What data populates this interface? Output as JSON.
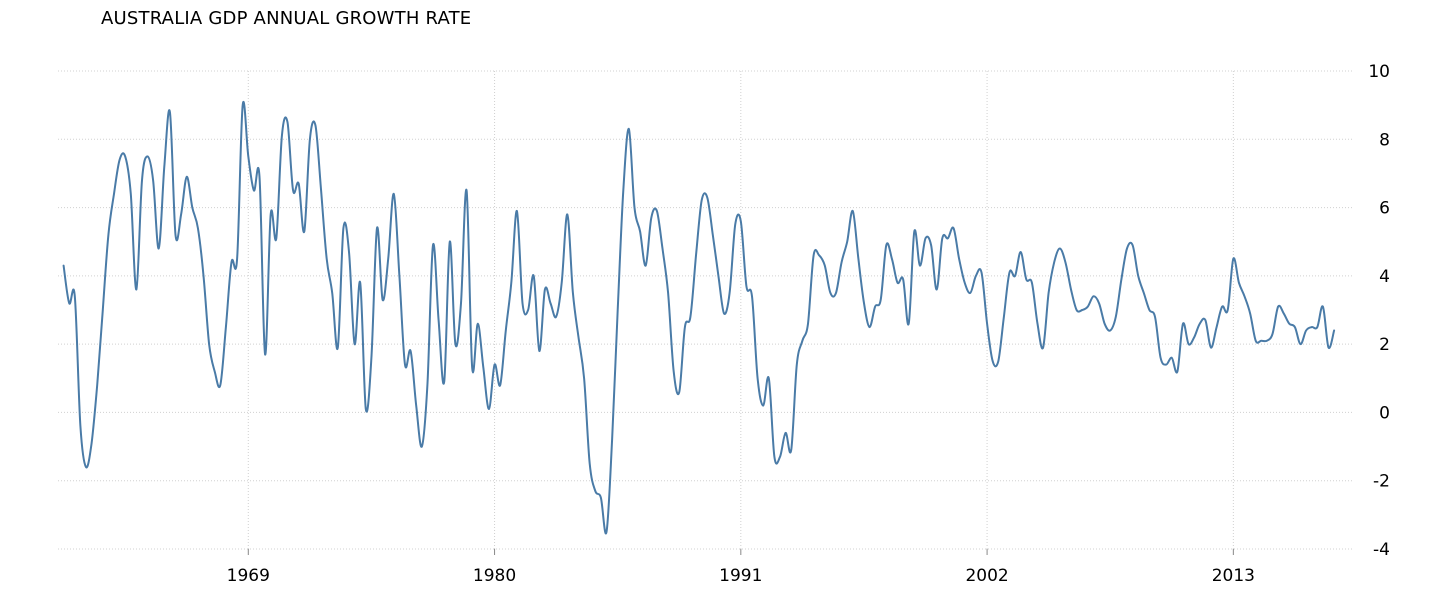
{
  "chart_data": {
    "type": "line",
    "title": "AUSTRALIA GDP ANNUAL GROWTH RATE",
    "xlabel": "",
    "ylabel": "",
    "ylim": [
      -4,
      10
    ],
    "xlim": [
      1960.5,
      2018.3
    ],
    "x_ticks": [
      1969,
      1980,
      1991,
      2002,
      2013
    ],
    "x_tick_labels": [
      "1969",
      "1980",
      "1991",
      "2002",
      "2013"
    ],
    "y_ticks": [
      10,
      8,
      6,
      4,
      2,
      0,
      -2,
      -4
    ],
    "y_tick_labels": [
      "10",
      "8",
      "6",
      "4",
      "2",
      "0",
      "-2",
      "-4"
    ],
    "grid": true,
    "colors": {
      "line": "#4a7ba7",
      "grid": "#d0d0d0"
    },
    "series": [
      {
        "name": "GDP Annual Growth Rate",
        "points": [
          [
            1960.75,
            4.3
          ],
          [
            1961.0,
            3.2
          ],
          [
            1961.25,
            3.4
          ],
          [
            1961.5,
            -0.4
          ],
          [
            1961.75,
            -1.6
          ],
          [
            1962.0,
            -0.9
          ],
          [
            1962.25,
            0.8
          ],
          [
            1962.5,
            3.0
          ],
          [
            1962.75,
            5.2
          ],
          [
            1963.0,
            6.4
          ],
          [
            1963.25,
            7.4
          ],
          [
            1963.5,
            7.5
          ],
          [
            1963.75,
            6.4
          ],
          [
            1964.0,
            3.6
          ],
          [
            1964.25,
            6.8
          ],
          [
            1964.5,
            7.5
          ],
          [
            1964.75,
            6.8
          ],
          [
            1965.0,
            4.8
          ],
          [
            1965.25,
            7.2
          ],
          [
            1965.5,
            8.8
          ],
          [
            1965.75,
            5.2
          ],
          [
            1966.0,
            5.8
          ],
          [
            1966.25,
            6.9
          ],
          [
            1966.5,
            6.0
          ],
          [
            1966.75,
            5.4
          ],
          [
            1967.0,
            4.0
          ],
          [
            1967.25,
            2.0
          ],
          [
            1967.5,
            1.2
          ],
          [
            1967.75,
            0.8
          ],
          [
            1968.0,
            2.5
          ],
          [
            1968.25,
            4.4
          ],
          [
            1968.5,
            4.5
          ],
          [
            1968.75,
            9.0
          ],
          [
            1969.0,
            7.5
          ],
          [
            1969.25,
            6.5
          ],
          [
            1969.5,
            6.9
          ],
          [
            1969.75,
            1.7
          ],
          [
            1970.0,
            5.8
          ],
          [
            1970.25,
            5.1
          ],
          [
            1970.5,
            8.1
          ],
          [
            1970.75,
            8.5
          ],
          [
            1971.0,
            6.5
          ],
          [
            1971.25,
            6.7
          ],
          [
            1971.5,
            5.3
          ],
          [
            1971.75,
            8.0
          ],
          [
            1972.0,
            8.4
          ],
          [
            1972.25,
            6.5
          ],
          [
            1972.5,
            4.5
          ],
          [
            1972.75,
            3.5
          ],
          [
            1973.0,
            1.9
          ],
          [
            1973.25,
            5.4
          ],
          [
            1973.5,
            4.7
          ],
          [
            1973.75,
            2.0
          ],
          [
            1974.0,
            3.8
          ],
          [
            1974.25,
            0.1
          ],
          [
            1974.5,
            1.6
          ],
          [
            1974.75,
            5.4
          ],
          [
            1975.0,
            3.3
          ],
          [
            1975.25,
            4.5
          ],
          [
            1975.5,
            6.4
          ],
          [
            1975.75,
            4.0
          ],
          [
            1976.0,
            1.4
          ],
          [
            1976.25,
            1.8
          ],
          [
            1976.5,
            0.2
          ],
          [
            1976.75,
            -1.0
          ],
          [
            1977.0,
            0.8
          ],
          [
            1977.25,
            4.9
          ],
          [
            1977.5,
            2.7
          ],
          [
            1977.75,
            0.9
          ],
          [
            1978.0,
            5.0
          ],
          [
            1978.25,
            2.0
          ],
          [
            1978.5,
            3.2
          ],
          [
            1978.75,
            6.5
          ],
          [
            1979.0,
            1.3
          ],
          [
            1979.25,
            2.6
          ],
          [
            1979.5,
            1.3
          ],
          [
            1979.75,
            0.1
          ],
          [
            1980.0,
            1.4
          ],
          [
            1980.25,
            0.8
          ],
          [
            1980.5,
            2.4
          ],
          [
            1980.75,
            3.8
          ],
          [
            1981.0,
            5.9
          ],
          [
            1981.25,
            3.2
          ],
          [
            1981.5,
            3.0
          ],
          [
            1981.75,
            4.0
          ],
          [
            1982.0,
            1.8
          ],
          [
            1982.25,
            3.6
          ],
          [
            1982.5,
            3.2
          ],
          [
            1982.75,
            2.8
          ],
          [
            1983.0,
            3.8
          ],
          [
            1983.25,
            5.8
          ],
          [
            1983.5,
            3.5
          ],
          [
            1983.75,
            2.2
          ],
          [
            1984.0,
            1.0
          ],
          [
            1984.25,
            -1.5
          ],
          [
            1984.5,
            -2.3
          ],
          [
            1984.75,
            -2.5
          ],
          [
            1985.0,
            -3.5
          ],
          [
            1985.25,
            -0.8
          ],
          [
            1985.5,
            3.0
          ],
          [
            1985.75,
            6.5
          ],
          [
            1986.0,
            8.3
          ],
          [
            1986.25,
            6.0
          ],
          [
            1986.5,
            5.3
          ],
          [
            1986.75,
            4.3
          ],
          [
            1987.0,
            5.7
          ],
          [
            1987.25,
            5.9
          ],
          [
            1987.5,
            4.8
          ],
          [
            1987.75,
            3.5
          ],
          [
            1988.0,
            1.2
          ],
          [
            1988.25,
            0.6
          ],
          [
            1988.5,
            2.5
          ],
          [
            1988.75,
            2.8
          ],
          [
            1989.0,
            4.6
          ],
          [
            1989.25,
            6.2
          ],
          [
            1989.5,
            6.3
          ],
          [
            1989.75,
            5.2
          ],
          [
            1990.0,
            4.0
          ],
          [
            1990.25,
            2.9
          ],
          [
            1990.5,
            3.5
          ],
          [
            1990.75,
            5.5
          ],
          [
            1991.0,
            5.6
          ],
          [
            1991.25,
            3.7
          ],
          [
            1991.5,
            3.4
          ],
          [
            1991.75,
            1.0
          ],
          [
            1992.0,
            0.2
          ],
          [
            1992.25,
            1.0
          ],
          [
            1992.5,
            -1.3
          ],
          [
            1992.75,
            -1.3
          ],
          [
            1993.0,
            -0.6
          ],
          [
            1993.25,
            -1.1
          ],
          [
            1993.5,
            1.4
          ],
          [
            1993.75,
            2.1
          ],
          [
            1994.0,
            2.6
          ],
          [
            1994.25,
            4.6
          ],
          [
            1994.5,
            4.6
          ],
          [
            1994.75,
            4.3
          ],
          [
            1995.0,
            3.5
          ],
          [
            1995.25,
            3.5
          ],
          [
            1995.5,
            4.4
          ],
          [
            1995.75,
            5.0
          ],
          [
            1996.0,
            5.9
          ],
          [
            1996.25,
            4.5
          ],
          [
            1996.5,
            3.2
          ],
          [
            1996.75,
            2.5
          ],
          [
            1997.0,
            3.1
          ],
          [
            1997.25,
            3.3
          ],
          [
            1997.5,
            4.9
          ],
          [
            1997.75,
            4.5
          ],
          [
            1998.0,
            3.8
          ],
          [
            1998.25,
            3.9
          ],
          [
            1998.5,
            2.6
          ],
          [
            1998.75,
            5.3
          ],
          [
            1999.0,
            4.3
          ],
          [
            1999.25,
            5.1
          ],
          [
            1999.5,
            4.9
          ],
          [
            1999.75,
            3.6
          ],
          [
            2000.0,
            5.1
          ],
          [
            2000.25,
            5.1
          ],
          [
            2000.5,
            5.4
          ],
          [
            2000.75,
            4.5
          ],
          [
            2001.0,
            3.8
          ],
          [
            2001.25,
            3.5
          ],
          [
            2001.5,
            4.0
          ],
          [
            2001.75,
            4.1
          ],
          [
            2002.0,
            2.6
          ],
          [
            2002.25,
            1.5
          ],
          [
            2002.5,
            1.5
          ],
          [
            2002.75,
            2.8
          ],
          [
            2003.0,
            4.1
          ],
          [
            2003.25,
            4.0
          ],
          [
            2003.5,
            4.7
          ],
          [
            2003.75,
            3.9
          ],
          [
            2004.0,
            3.8
          ],
          [
            2004.25,
            2.6
          ],
          [
            2004.5,
            1.9
          ],
          [
            2004.75,
            3.5
          ],
          [
            2005.0,
            4.4
          ],
          [
            2005.25,
            4.8
          ],
          [
            2005.5,
            4.4
          ],
          [
            2005.75,
            3.6
          ],
          [
            2006.0,
            3.0
          ],
          [
            2006.25,
            3.0
          ],
          [
            2006.5,
            3.1
          ],
          [
            2006.75,
            3.4
          ],
          [
            2007.0,
            3.2
          ],
          [
            2007.25,
            2.6
          ],
          [
            2007.5,
            2.4
          ],
          [
            2007.75,
            2.8
          ],
          [
            2008.0,
            3.9
          ],
          [
            2008.25,
            4.8
          ],
          [
            2008.5,
            4.9
          ],
          [
            2008.75,
            4.0
          ],
          [
            2009.0,
            3.5
          ],
          [
            2009.25,
            3.0
          ],
          [
            2009.5,
            2.8
          ],
          [
            2009.75,
            1.6
          ],
          [
            2010.0,
            1.4
          ],
          [
            2010.25,
            1.6
          ],
          [
            2010.5,
            1.2
          ],
          [
            2010.75,
            2.6
          ],
          [
            2011.0,
            2.0
          ],
          [
            2011.25,
            2.2
          ],
          [
            2011.5,
            2.6
          ],
          [
            2011.75,
            2.7
          ],
          [
            2012.0,
            1.9
          ],
          [
            2012.25,
            2.5
          ],
          [
            2012.5,
            3.1
          ],
          [
            2012.75,
            3.0
          ],
          [
            2013.0,
            4.5
          ],
          [
            2013.25,
            3.8
          ],
          [
            2013.5,
            3.4
          ],
          [
            2013.75,
            2.9
          ],
          [
            2014.0,
            2.1
          ],
          [
            2014.25,
            2.1
          ],
          [
            2014.5,
            2.1
          ],
          [
            2014.75,
            2.3
          ],
          [
            2015.0,
            3.1
          ],
          [
            2015.25,
            2.9
          ],
          [
            2015.5,
            2.6
          ],
          [
            2015.75,
            2.5
          ],
          [
            2016.0,
            2.0
          ],
          [
            2016.25,
            2.4
          ],
          [
            2016.5,
            2.5
          ],
          [
            2016.75,
            2.5
          ],
          [
            2017.0,
            3.1
          ],
          [
            2017.25,
            1.9
          ],
          [
            2017.5,
            2.4
          ]
        ]
      }
    ]
  }
}
